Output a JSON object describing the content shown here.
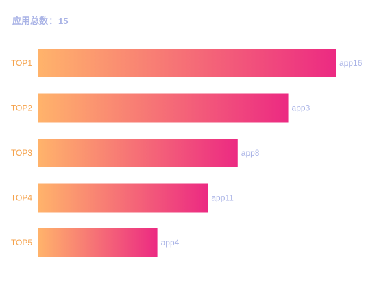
{
  "header": {
    "label": "应用总数",
    "separator": "：",
    "count": "15"
  },
  "colors": {
    "gradient_start": "#ffb36b",
    "gradient_end": "#ec2a82",
    "tick_text": "#f5a24b",
    "value_text": "#a9b3e6",
    "header_text": "#a9b3e6"
  },
  "chart_data": {
    "type": "bar",
    "orientation": "horizontal",
    "categories": [
      "TOP1",
      "TOP2",
      "TOP3",
      "TOP4",
      "TOP5"
    ],
    "bar_labels": [
      "app16",
      "app3",
      "app8",
      "app11",
      "app4"
    ],
    "values": [
      100,
      84,
      67,
      57,
      40
    ],
    "xlim": [
      0,
      100
    ],
    "grid": false,
    "legend": "none"
  }
}
